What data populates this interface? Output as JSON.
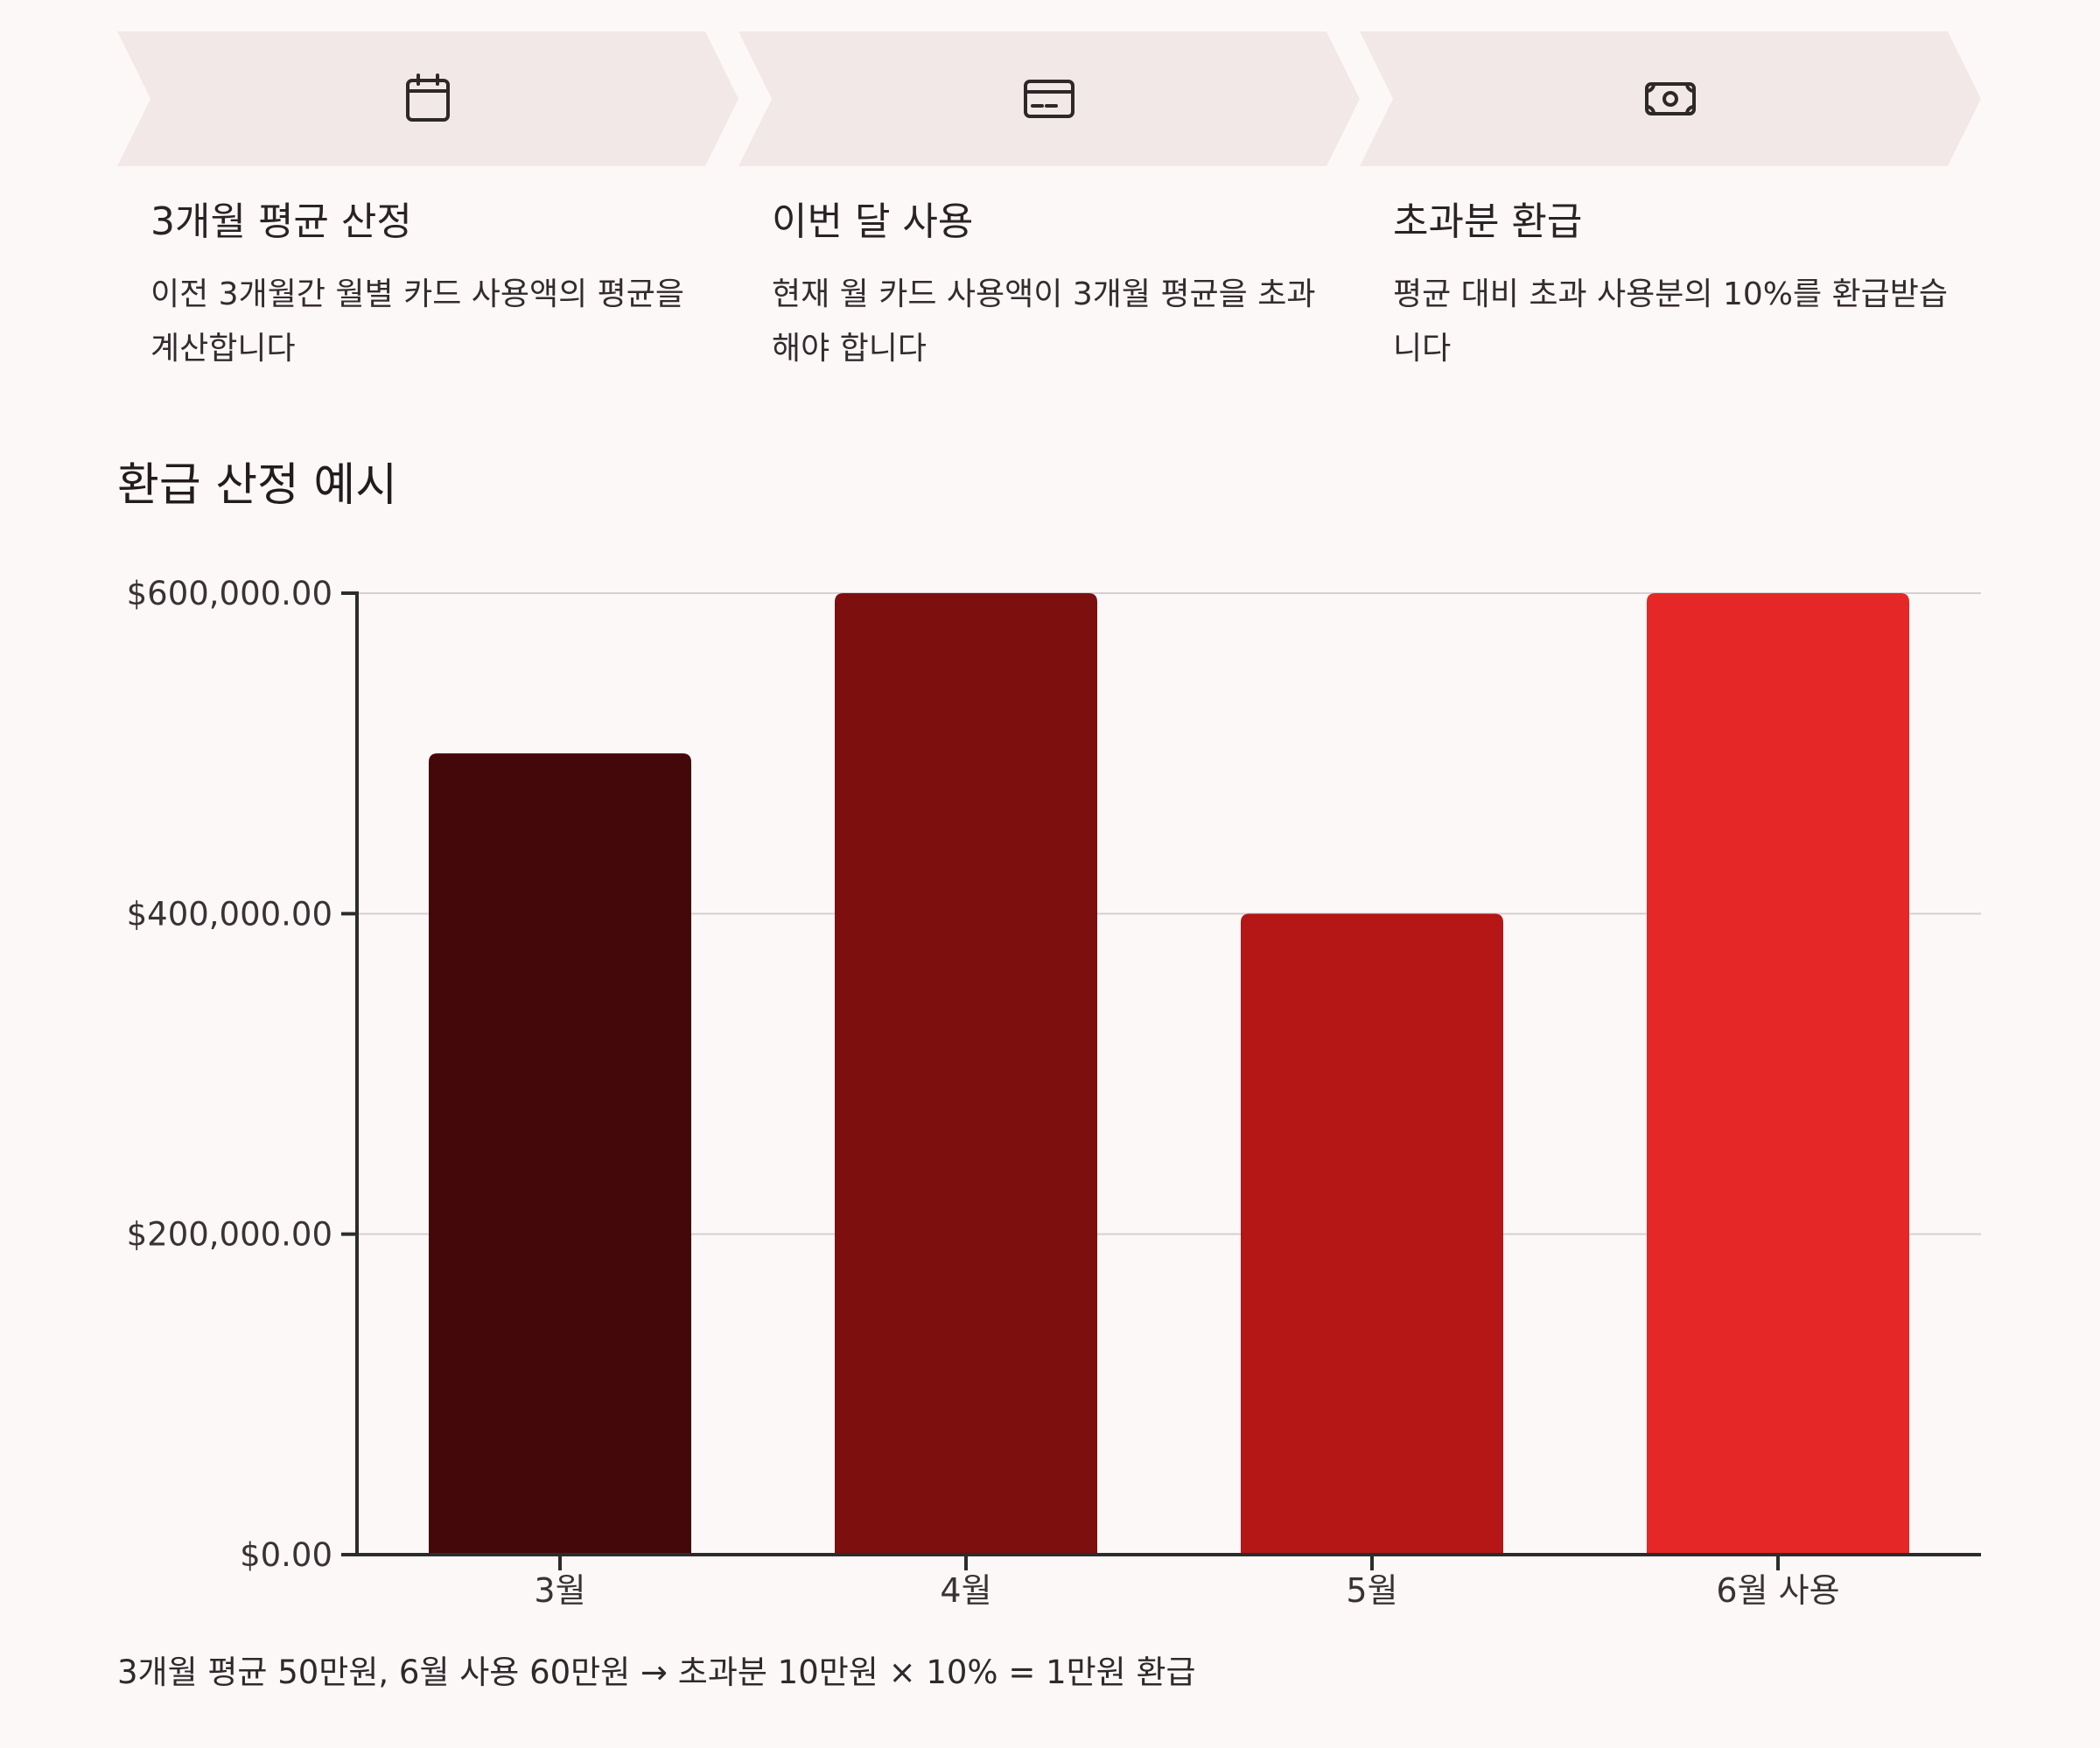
{
  "steps": [
    {
      "icon": "calendar-icon",
      "title": "3개월 평균 산정",
      "description": "이전 3개월간 월별 카드 사용액의 평균을 계산합니다"
    },
    {
      "icon": "credit-card-icon",
      "title": "이번 달 사용",
      "description": "현재 월 카드 사용액이 3개월 평균을 초과해야 합니다"
    },
    {
      "icon": "banknote-icon",
      "title": "초과분 환급",
      "description": "평균 대비 초과 사용분의 10%를 환급받습니다"
    }
  ],
  "chart_title": "환급 산정 예시",
  "chart_data": {
    "type": "bar",
    "categories": [
      "3월",
      "4월",
      "5월",
      "6월 사용"
    ],
    "values": [
      500000,
      600000,
      400000,
      600000
    ],
    "colors": [
      "#45080a",
      "#7e0f0f",
      "#b51616",
      "#e52727"
    ],
    "ylim": [
      0,
      600000
    ],
    "yticks": [
      0,
      200000,
      400000,
      600000
    ],
    "ytick_labels": [
      "$0.00",
      "$200,000.00",
      "$400,000.00",
      "$600,000.00"
    ],
    "grid": true,
    "xlabel": "",
    "ylabel": ""
  },
  "footnote": "3개월 평균 50만원, 6월 사용 60만원 → 초과분 10만원 × 10% = 1만원 환급"
}
